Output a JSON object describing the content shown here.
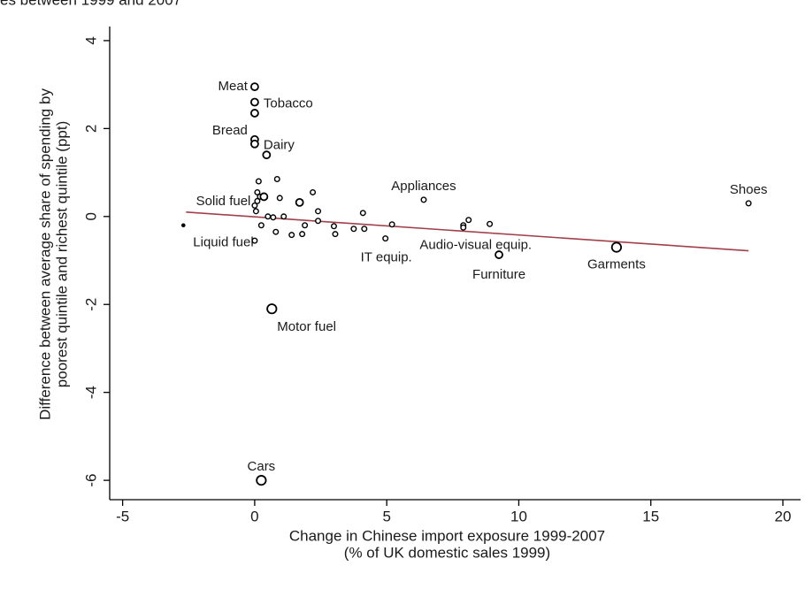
{
  "chart_data": {
    "type": "scatter",
    "title": "es between 1999 and 2007",
    "x_label": [
      "Change in Chinese import exposure 1999-2007",
      "(% of UK domestic sales 1999)"
    ],
    "y_label": [
      "Difference between average share of spending by",
      "poorest quintile and richest quintile (ppt)"
    ],
    "x": [
      0,
      0,
      0,
      0,
      0,
      0.45,
      0.15,
      0.85,
      2.2,
      0.95,
      1.7,
      0.1,
      0.2,
      0.35,
      0.1,
      0,
      0.05,
      2.4,
      4.1,
      6.4,
      18.7,
      -2.7,
      0.5,
      0.7,
      1.1,
      2.4,
      1.9,
      3,
      3.75,
      4.15,
      5.2,
      7.9,
      7.9,
      8.1,
      8.9,
      0.25,
      0.8,
      1.4,
      1.8,
      3.05,
      0,
      4.95,
      9.25,
      13.7,
      0.65,
      0.25
    ],
    "y": [
      2.95,
      2.6,
      2.35,
      1.75,
      1.65,
      1.4,
      0.8,
      0.85,
      0.55,
      0.42,
      0.32,
      0.55,
      0.45,
      0.45,
      0.35,
      0.25,
      0.12,
      0.12,
      0.08,
      0.38,
      0.3,
      -0.2,
      0,
      -0.02,
      0,
      -0.1,
      -0.2,
      -0.22,
      -0.28,
      -0.28,
      -0.18,
      -0.2,
      -0.25,
      -0.08,
      -0.17,
      -0.2,
      -0.35,
      -0.42,
      -0.4,
      -0.4,
      -0.55,
      -0.5,
      -0.87,
      -0.7,
      -2.1,
      -6.0
    ],
    "sizes": [
      2,
      2,
      2,
      2,
      2,
      2,
      1,
      1,
      1,
      1,
      2,
      1,
      1,
      2,
      1,
      1,
      1,
      1,
      1,
      1,
      1,
      0,
      1,
      1,
      1,
      1,
      1,
      1,
      1,
      1,
      1,
      1,
      1,
      1,
      1,
      1,
      1,
      1,
      1,
      1,
      1,
      1,
      2,
      3,
      3,
      3
    ],
    "labels": [
      "Meat",
      "Tobacco",
      null,
      "Bread",
      "Dairy",
      null,
      null,
      null,
      null,
      null,
      null,
      null,
      null,
      null,
      null,
      null,
      "Solid fuel",
      null,
      null,
      "Appliances",
      "Shoes",
      "Liquid fuel",
      null,
      null,
      null,
      null,
      null,
      null,
      null,
      null,
      null,
      null,
      null,
      "Audio-visual equip.",
      null,
      null,
      null,
      null,
      null,
      null,
      null,
      "IT equip.",
      "Furniture",
      "Garments",
      "Motor fuel",
      "Cars"
    ],
    "fit_line": {
      "x": [
        -2.6,
        18.7
      ],
      "y": [
        0.1,
        -0.78
      ],
      "color": "#a0404a"
    },
    "xlim": [
      -5.49,
      20.67
    ],
    "ylim": [
      -6.44,
      4.32
    ],
    "xticks": [
      -5,
      0,
      5,
      10,
      15,
      20
    ],
    "yticks": [
      -6,
      -4,
      -2,
      0,
      2,
      4
    ],
    "grid": false
  }
}
